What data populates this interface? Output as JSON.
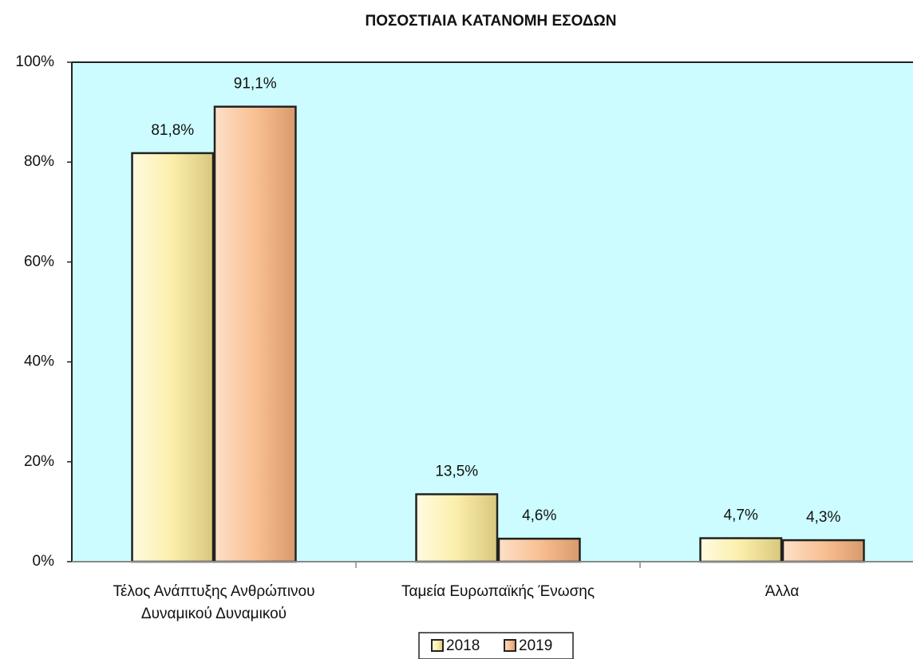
{
  "chart_data": {
    "type": "bar",
    "title": "ΠΟΣΟΣΤΙΑΙΑ ΚΑΤΑΝΟΜΗ ΕΣΟΔΩΝ",
    "categories": [
      "Τέλος Ανάπτυξης Ανθρώπινου Δυναμικού Δυναμικού",
      "Ταμεία Ευρωπαϊκής Ένωσης",
      "Άλλα"
    ],
    "series": [
      {
        "name": "2018",
        "color": "#fbeeaa",
        "values": [
          81.8,
          13.5,
          4.7
        ],
        "value_labels": [
          "81,8%",
          "13,5%",
          "4,7%"
        ]
      },
      {
        "name": "2019",
        "color": "#f9c093",
        "values": [
          91.1,
          4.6,
          4.3
        ],
        "value_labels": [
          "91,1%",
          "4,6%",
          "4,3%"
        ]
      }
    ],
    "ylim": [
      0,
      100
    ],
    "yticks": [
      {
        "value": 0,
        "label": "0%"
      },
      {
        "value": 20,
        "label": "20%"
      },
      {
        "value": 40,
        "label": "40%"
      },
      {
        "value": 60,
        "label": "60%"
      },
      {
        "value": 80,
        "label": "80%"
      },
      {
        "value": 100,
        "label": "100%"
      }
    ],
    "legend": "bottom"
  }
}
